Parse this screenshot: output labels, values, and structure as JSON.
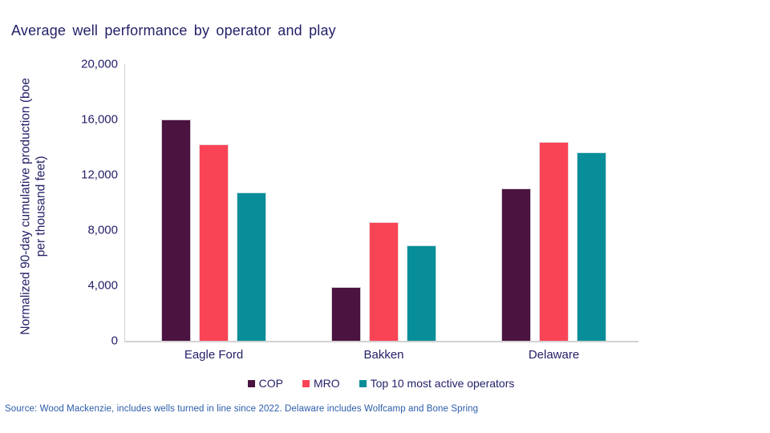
{
  "slide": {
    "title": "Average well performance by operator and play",
    "source": "Source: Wood Mackenzie, includes wells turned in line since 2022. Delaware includes Wolfcamp and Bone Spring"
  },
  "colors": {
    "title_text": "#242168",
    "axis_text": "#242168",
    "source_text": "#2A5CAA",
    "axis_line": "#D2D2D2"
  },
  "chart_data": {
    "type": "bar",
    "title": "Average well performance by operator and play",
    "xlabel": "",
    "ylabel": "Normalized 90-day cumulative production (boe per thousand feet)",
    "ylabel_lines": [
      "Normalized 90-day cumulative production (boe",
      "per thousand feet)"
    ],
    "ylim": [
      0,
      20000
    ],
    "grid": false,
    "legend_position": "bottom",
    "yticks": [
      {
        "label": "0",
        "value": 0
      },
      {
        "label": "4,000",
        "value": 4000
      },
      {
        "label": "8,000",
        "value": 8000
      },
      {
        "label": "12,000",
        "value": 12000
      },
      {
        "label": "16,000",
        "value": 16000
      },
      {
        "label": "20,000",
        "value": 20000
      }
    ],
    "categories": [
      "Eagle Ford",
      "Bakken",
      "Delaware"
    ],
    "series": [
      {
        "name": "COP",
        "color": "#4B133F",
        "values": [
          16000,
          3900,
          11000
        ]
      },
      {
        "name": "MRO",
        "color": "#F94456",
        "values": [
          14200,
          8600,
          14400
        ]
      },
      {
        "name": "Top 10 most active operators",
        "color": "#078E98",
        "values": [
          10700,
          6900,
          13600
        ]
      }
    ]
  }
}
